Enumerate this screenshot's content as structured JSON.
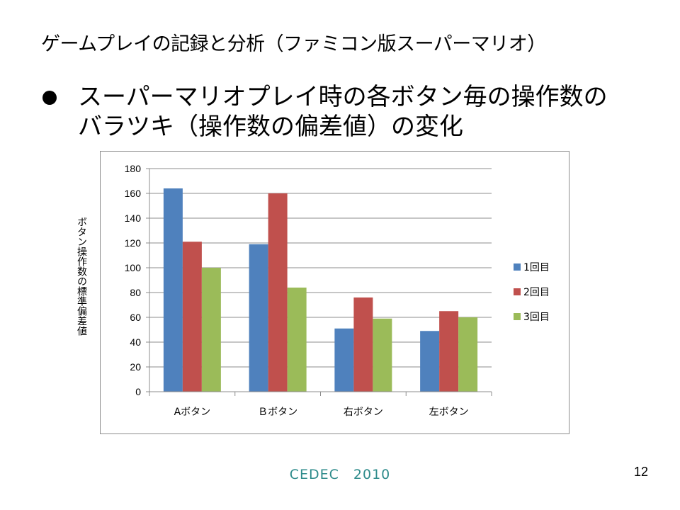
{
  "slide": {
    "title": "ゲームプレイの記録と分析（ファミコン版スーパーマリオ）",
    "bullet_line1": "スーパーマリオプレイ時の各ボタン毎の操作数の",
    "bullet_line2": "バラツキ（操作数の偏差値）の変化",
    "footer": "CEDEC　2010",
    "page_number": "12"
  },
  "colors": {
    "series1": "#4f81bd",
    "series2": "#c0504d",
    "series3": "#9bbb59",
    "gridline": "#8c8c8c",
    "axis": "#8c8c8c"
  },
  "chart_data": {
    "type": "bar",
    "title": "",
    "xlabel": "",
    "ylabel": "ボタン操作数の標準偏差値",
    "ylim": [
      0,
      180
    ],
    "yticks": [
      "0",
      "20",
      "40",
      "60",
      "80",
      "100",
      "120",
      "140",
      "160",
      "180"
    ],
    "grid": true,
    "legend_position": "right",
    "categories": [
      "Aボタン",
      "Ｂボタン",
      "右ボタン",
      "左ボタン"
    ],
    "series": [
      {
        "name": "1回目",
        "values": [
          164,
          119,
          51,
          49
        ]
      },
      {
        "name": "2回目",
        "values": [
          121,
          160,
          76,
          65
        ]
      },
      {
        "name": "3回目",
        "values": [
          100,
          84,
          59,
          60
        ]
      }
    ]
  }
}
